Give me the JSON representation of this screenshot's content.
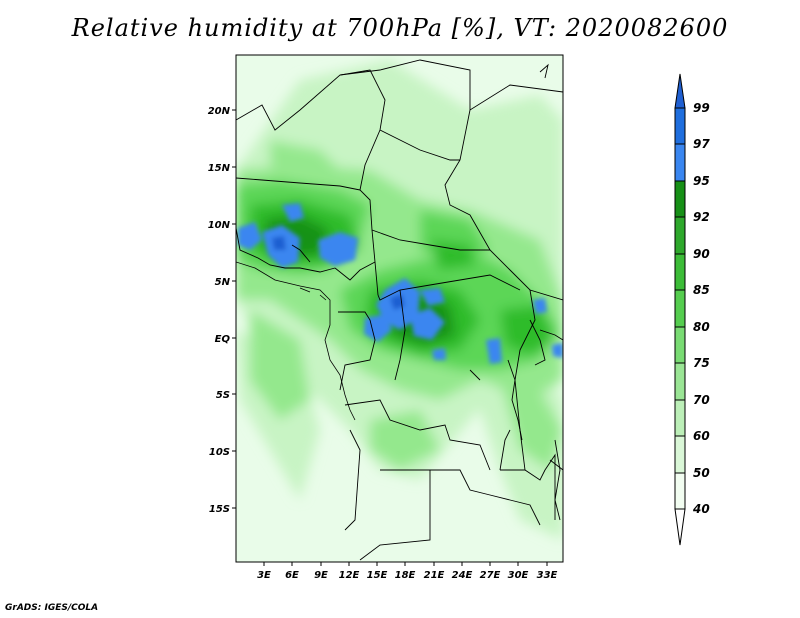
{
  "title": "Relative humidity at 700hPa [%], VT: 2020082600",
  "credit": "GrADS: IGES/COLA",
  "map": {
    "lat_labels": [
      "20N",
      "15N",
      "10N",
      "5N",
      "EQ",
      "5S",
      "10S",
      "15S"
    ],
    "lon_labels": [
      "3E",
      "6E",
      "9E",
      "12E",
      "15E",
      "18E",
      "21E",
      "24E",
      "27E",
      "30E",
      "33E"
    ],
    "colors": {
      "lightest": "#e9fce9",
      "light": "#c8f4c4",
      "mid": "#94e88d",
      "green": "#5bd656",
      "dark": "#2ebc2a",
      "darkest": "#199219",
      "blue": "#3a86f0",
      "deepblue": "#1f5fd1"
    }
  },
  "colorbar": {
    "labels": [
      "99",
      "97",
      "95",
      "92",
      "90",
      "85",
      "80",
      "75",
      "70",
      "60",
      "50",
      "40"
    ],
    "colors": [
      "#1f5fd1",
      "#1f6ede",
      "#3a86f0",
      "#179017",
      "#2ea82c",
      "#3cbc38",
      "#55cd4f",
      "#79db73",
      "#9ae595",
      "#bcefb8",
      "#daf7d7",
      "#f2fdf1"
    ]
  }
}
